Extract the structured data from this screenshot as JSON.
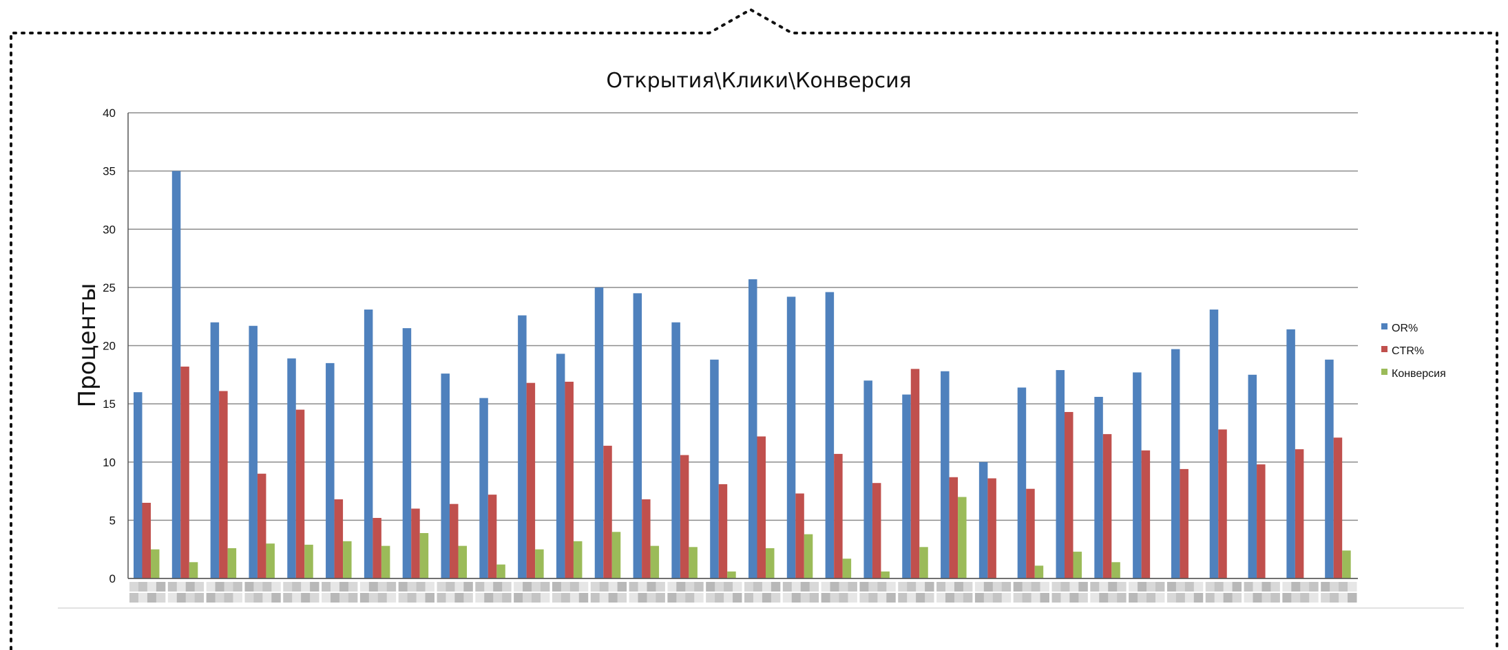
{
  "chart_data": {
    "type": "bar",
    "title": "Открытия\\Клики\\Конверсия",
    "xlabel": "",
    "ylabel": "Проценты",
    "ylim": [
      0,
      40
    ],
    "yticks": [
      0,
      5,
      10,
      15,
      20,
      25,
      30,
      35,
      40
    ],
    "grid": true,
    "legend_position": "right",
    "categories_note": "category labels are blurred/unreadable",
    "series": [
      {
        "name": "OR%",
        "color": "#4F81BD",
        "values": [
          16,
          35,
          22,
          21.7,
          18.9,
          18.5,
          23.1,
          21.5,
          17.6,
          15.5,
          22.6,
          19.3,
          25,
          24.5,
          22,
          18.8,
          25.7,
          24.2,
          24.6,
          17,
          15.8,
          17.8,
          10,
          16.4,
          17.9,
          15.6,
          17.7,
          19.7,
          23.1,
          17.5,
          21.4,
          18.8
        ]
      },
      {
        "name": "CTR%",
        "color": "#C0504D",
        "values": [
          6.5,
          18.2,
          16.1,
          9,
          14.5,
          6.8,
          5.2,
          6,
          6.4,
          7.2,
          16.8,
          16.9,
          11.4,
          6.8,
          10.6,
          8.1,
          12.2,
          7.3,
          10.7,
          8.2,
          18,
          8.7,
          8.6,
          7.7,
          14.3,
          12.4,
          11,
          9.4,
          12.8,
          9.8,
          11.1,
          12.1
        ]
      },
      {
        "name": "Конверсия",
        "color": "#9BBB59",
        "values": [
          2.5,
          1.4,
          2.6,
          3,
          2.9,
          3.2,
          2.8,
          3.9,
          2.8,
          1.2,
          2.5,
          3.2,
          4,
          2.8,
          2.7,
          0.6,
          2.6,
          3.8,
          1.7,
          0.6,
          2.7,
          7,
          0,
          1.1,
          2.3,
          1.4,
          0,
          0,
          0,
          0,
          0,
          2.4
        ]
      }
    ]
  }
}
